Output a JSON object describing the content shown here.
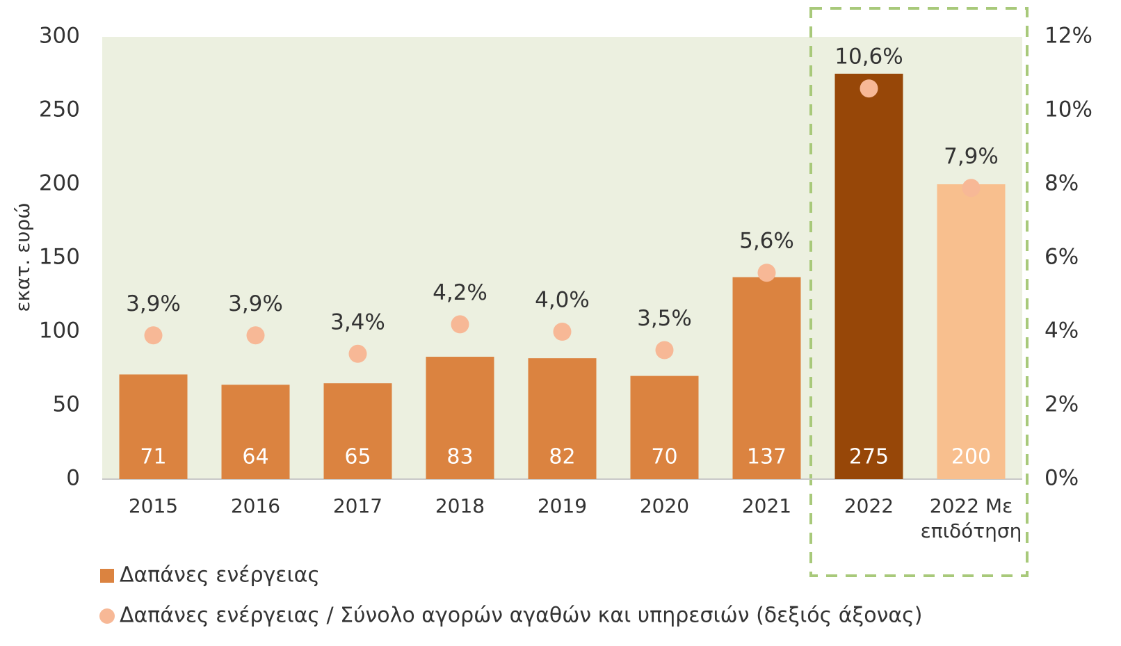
{
  "chart_data": {
    "type": "bar",
    "y_axis_label": "εκατ. ευρώ",
    "categories": [
      "2015",
      "2016",
      "2017",
      "2018",
      "2019",
      "2020",
      "2021",
      "2022",
      "2022 Με επιδότηση"
    ],
    "series": [
      {
        "name": "Δαπάνες ενέργειας",
        "type": "bar",
        "color": "#db8340",
        "colors": [
          "#db8340",
          "#db8340",
          "#db8340",
          "#db8340",
          "#db8340",
          "#db8340",
          "#db8340",
          "#974708",
          "#f8bf8e"
        ],
        "values": [
          71,
          64,
          65,
          83,
          82,
          70,
          137,
          275,
          200
        ]
      },
      {
        "name": "Δαπάνες ενέργειας / Σύνολο αγορών αγαθών και υπηρεσιών (δεξιός άξονας)",
        "type": "scatter",
        "axis": "y2",
        "color": "#f7b896",
        "values": [
          3.9,
          3.9,
          3.4,
          4.2,
          4.0,
          3.5,
          5.6,
          10.6,
          7.9
        ],
        "value_labels": [
          "3,9%",
          "3,9%",
          "3,4%",
          "4,2%",
          "4,0%",
          "3,5%",
          "5,6%",
          "10,6%",
          "7,9%"
        ]
      }
    ],
    "ylim": [
      0,
      300
    ],
    "yticks": [
      0,
      50,
      100,
      150,
      200,
      250,
      300
    ],
    "y2lim": [
      0,
      12
    ],
    "y2ticks": [
      {
        "value": 0,
        "label": "0%"
      },
      {
        "value": 2,
        "label": "2%"
      },
      {
        "value": 4,
        "label": "4%"
      },
      {
        "value": 6,
        "label": "6%"
      },
      {
        "value": 8,
        "label": "8%"
      },
      {
        "value": 10,
        "label": "10%"
      },
      {
        "value": 12,
        "label": "12%"
      }
    ],
    "legend": "bottom"
  }
}
